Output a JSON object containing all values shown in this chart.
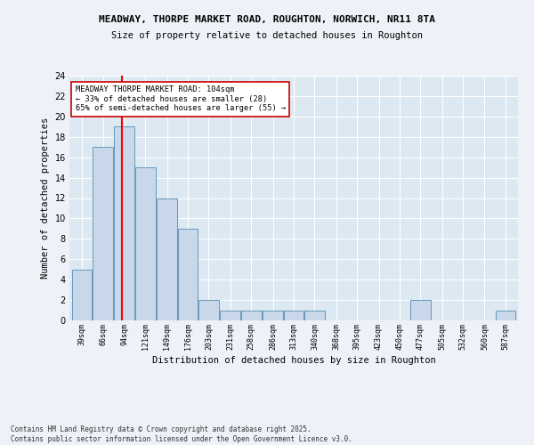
{
  "title_line1": "MEADWAY, THORPE MARKET ROAD, ROUGHTON, NORWICH, NR11 8TA",
  "title_line2": "Size of property relative to detached houses in Roughton",
  "xlabel": "Distribution of detached houses by size in Roughton",
  "ylabel": "Number of detached properties",
  "bins": [
    39,
    66,
    94,
    121,
    149,
    176,
    203,
    231,
    258,
    286,
    313,
    340,
    368,
    395,
    423,
    450,
    477,
    505,
    532,
    560,
    587
  ],
  "values": [
    5,
    17,
    19,
    15,
    12,
    9,
    2,
    1,
    1,
    1,
    1,
    1,
    0,
    0,
    0,
    0,
    2,
    0,
    0,
    0,
    1
  ],
  "bar_color": "#c8d8ea",
  "bar_edge_color": "#6699bb",
  "red_line_x": 104,
  "annotation_text": "MEADWAY THORPE MARKET ROAD: 104sqm\n← 33% of detached houses are smaller (28)\n65% of semi-detached houses are larger (55) →",
  "annotation_box_color": "#ffffff",
  "annotation_box_edge_color": "#cc0000",
  "ylim": [
    0,
    24
  ],
  "yticks": [
    0,
    2,
    4,
    6,
    8,
    10,
    12,
    14,
    16,
    18,
    20,
    22,
    24
  ],
  "background_color": "#dde8f0",
  "plot_bg_color": "#dce8f2",
  "grid_color": "#ffffff",
  "fig_bg_color": "#eef2f8",
  "footer_text": "Contains HM Land Registry data © Crown copyright and database right 2025.\nContains public sector information licensed under the Open Government Licence v3.0."
}
